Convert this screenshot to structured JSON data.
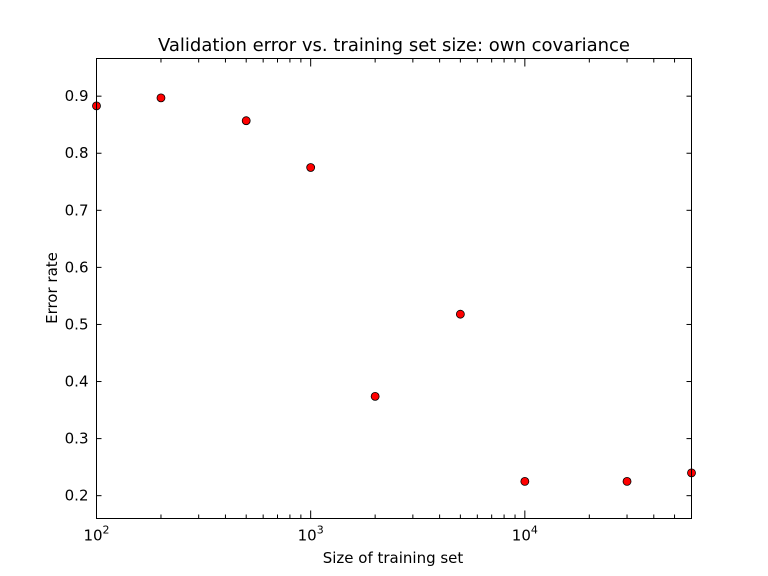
{
  "chart_data": {
    "type": "scatter",
    "title": "Validation error vs. training set size: own covariance",
    "xlabel": "Size of training set",
    "ylabel": "Error rate",
    "xscale": "log",
    "xlim": [
      100,
      60000
    ],
    "ylim": [
      0.16,
      0.966
    ],
    "x_ticks": [
      {
        "value": 100,
        "base": "10",
        "exp": "2"
      },
      {
        "value": 1000,
        "base": "10",
        "exp": "3"
      },
      {
        "value": 10000,
        "base": "10",
        "exp": "4"
      }
    ],
    "y_ticks": [
      {
        "value": 0.2,
        "label": "0.2"
      },
      {
        "value": 0.3,
        "label": "0.3"
      },
      {
        "value": 0.4,
        "label": "0.4"
      },
      {
        "value": 0.5,
        "label": "0.5"
      },
      {
        "value": 0.6,
        "label": "0.6"
      },
      {
        "value": 0.7,
        "label": "0.7"
      },
      {
        "value": 0.8,
        "label": "0.8"
      },
      {
        "value": 0.9,
        "label": "0.9"
      }
    ],
    "grid": false,
    "legend": "none",
    "series": [
      {
        "color": "#ff0000",
        "x": [
          100,
          200,
          500,
          1000,
          2000,
          5000,
          10000,
          30000,
          60000
        ],
        "y": [
          0.883,
          0.897,
          0.857,
          0.775,
          0.374,
          0.518,
          0.225,
          0.225,
          0.24
        ]
      }
    ]
  }
}
